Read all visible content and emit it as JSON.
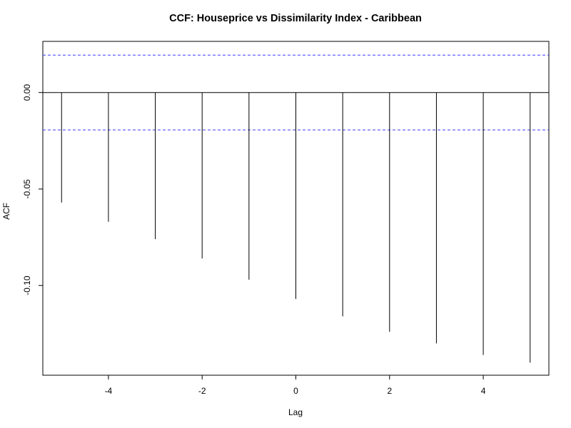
{
  "chart_data": {
    "type": "bar",
    "style": "lag-spikes",
    "title": "CCF: Houseprice vs Dissimilarity Index - Caribbean",
    "xlabel": "Lag",
    "ylabel": "ACF",
    "x": [
      -5,
      -4,
      -3,
      -2,
      -1,
      0,
      1,
      2,
      3,
      4,
      5
    ],
    "values": [
      -0.057,
      -0.067,
      -0.076,
      -0.086,
      -0.097,
      -0.107,
      -0.116,
      -0.124,
      -0.13,
      -0.136,
      -0.14
    ],
    "xlim": [
      -5.4,
      5.4
    ],
    "ylim": [
      -0.1465,
      0.0265
    ],
    "xticks": [
      -4,
      -2,
      0,
      2,
      4
    ],
    "yticks": [
      0.0,
      -0.05,
      -0.1
    ],
    "ytick_labels": [
      "0.00",
      "-0.05",
      "-0.10"
    ],
    "confidence_bounds": [
      0.0194,
      -0.0194
    ],
    "zero_line": 0,
    "grid": false,
    "colors": {
      "spike": "#000000",
      "bounds": "#3b3bff",
      "axis": "#000000"
    }
  }
}
